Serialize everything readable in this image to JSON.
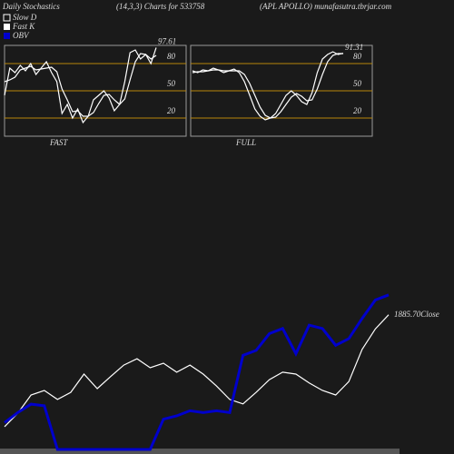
{
  "header": {
    "left": "Daily Stochastics",
    "middle": "(14,3,3) Charts for 533758",
    "right": "(APL APOLLO) munafasutra.tbrjar.com"
  },
  "chart_data": [
    {
      "type": "line",
      "title": "FAST",
      "ylim": [
        0,
        100
      ],
      "yticks": [
        20,
        50,
        80
      ],
      "grid": true,
      "grid_color": "#b8860b",
      "series": [
        {
          "name": "Fast K",
          "color": "#ffffff",
          "values": [
            45,
            75,
            70,
            78,
            72,
            80,
            68,
            75,
            82,
            70,
            60,
            25,
            35,
            20,
            30,
            15,
            22,
            40,
            45,
            50,
            42,
            28,
            35,
            60,
            92,
            95,
            85,
            90,
            80,
            97.61
          ]
        },
        {
          "name": "Slow D",
          "color": "#ffffff",
          "values": [
            60,
            62,
            65,
            73,
            75,
            77,
            73,
            74,
            75,
            76,
            71,
            52,
            40,
            27,
            28,
            22,
            22,
            26,
            36,
            45,
            46,
            40,
            35,
            41,
            62,
            82,
            91,
            90,
            85,
            89
          ]
        }
      ]
    },
    {
      "type": "line",
      "title": "FULL",
      "ylim": [
        0,
        100
      ],
      "yticks": [
        20,
        50,
        80
      ],
      "grid": true,
      "grid_color": "#b8860b",
      "series": [
        {
          "color": "#ffffff",
          "values": [
            72,
            70,
            73,
            72,
            75,
            73,
            70,
            72,
            74,
            70,
            60,
            45,
            30,
            22,
            18,
            20,
            25,
            35,
            45,
            50,
            45,
            38,
            35,
            48,
            70,
            85,
            90,
            93,
            90,
            91.31
          ]
        },
        {
          "color": "#ffffff",
          "values": [
            70,
            71,
            71,
            72,
            73,
            73,
            72,
            72,
            72,
            72,
            68,
            58,
            45,
            32,
            23,
            20,
            21,
            27,
            35,
            43,
            47,
            44,
            39,
            40,
            52,
            68,
            82,
            89,
            91,
            91
          ]
        }
      ]
    },
    {
      "type": "line",
      "annotation": "1885.70Close",
      "ylim": [
        1525,
        1975
      ],
      "y2lim": [
        0,
        100
      ],
      "series": [
        {
          "color": "#ffffff",
          "values": [
            1586,
            1622,
            1671,
            1683,
            1659,
            1678,
            1727,
            1688,
            1720,
            1751,
            1768,
            1744,
            1756,
            1732,
            1751,
            1727,
            1695,
            1659,
            1647,
            1678,
            1712,
            1732,
            1727,
            1703,
            1683,
            1671,
            1707,
            1793,
            1848,
            1885.7
          ]
        },
        {
          "name": "OBV",
          "color": "#0000cc",
          "axis": "y2",
          "values": [
            16,
            22,
            27,
            26,
            0,
            0,
            0,
            0,
            0,
            0,
            0,
            0,
            18,
            20,
            23,
            22,
            23,
            22,
            56,
            59,
            69,
            72,
            57,
            74,
            72,
            62,
            66,
            78,
            89,
            92
          ]
        }
      ]
    }
  ]
}
